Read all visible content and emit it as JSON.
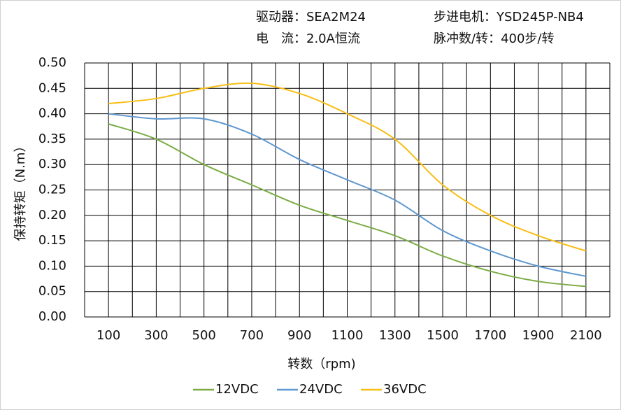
{
  "chart_data": {
    "type": "line",
    "annotations": [
      "驱动器：SEA2M24",
      "步进电机：YSD245P-NB4",
      "电　流：2.0A恒流",
      "脉冲数/转：400步/转"
    ],
    "y_label": "保持转矩（N.m）",
    "x_label": "转数（rpm)",
    "x": [
      100,
      300,
      500,
      700,
      900,
      1100,
      1300,
      1500,
      1700,
      1900,
      2100
    ],
    "series": [
      {
        "name": "12VDC",
        "color": "#7cac45",
        "values": [
          0.38,
          0.35,
          0.3,
          0.26,
          0.22,
          0.19,
          0.16,
          0.12,
          0.09,
          0.07,
          0.06
        ]
      },
      {
        "name": "24VDC",
        "color": "#5f97cf",
        "values": [
          0.4,
          0.39,
          0.39,
          0.36,
          0.31,
          0.27,
          0.23,
          0.17,
          0.13,
          0.1,
          0.08
        ]
      },
      {
        "name": "36VDC",
        "color": "#f8be16",
        "values": [
          0.42,
          0.43,
          0.45,
          0.46,
          0.44,
          0.4,
          0.35,
          0.26,
          0.2,
          0.16,
          0.13
        ]
      }
    ],
    "xlim": [
      0,
      2200
    ],
    "xticks": [
      100,
      300,
      500,
      700,
      900,
      1100,
      1300,
      1500,
      1700,
      1900,
      2100
    ],
    "xgrid": [
      0,
      100,
      200,
      300,
      400,
      500,
      600,
      700,
      800,
      900,
      1000,
      1100,
      1200,
      1300,
      1400,
      1500,
      1600,
      1700,
      1800,
      1900,
      2000,
      2100,
      2200
    ],
    "ylim": [
      0,
      0.5
    ],
    "yticks": [
      {
        "value": 0,
        "label": "0.00"
      },
      {
        "value": 0.05,
        "label": "0.05"
      },
      {
        "value": 0.1,
        "label": "0.10"
      },
      {
        "value": 0.15,
        "label": "0.15"
      },
      {
        "value": 0.2,
        "label": "0.20"
      },
      {
        "value": 0.25,
        "label": "0.25"
      },
      {
        "value": 0.3,
        "label": "0.30"
      },
      {
        "value": 0.35,
        "label": "0.35"
      },
      {
        "value": 0.4,
        "label": "0.40"
      },
      {
        "value": 0.45,
        "label": "0.45"
      },
      {
        "value": 0.5,
        "label": "0.50"
      }
    ],
    "grid": true
  }
}
